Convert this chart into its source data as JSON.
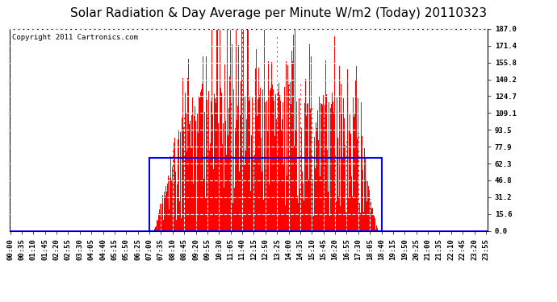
{
  "title": "Solar Radiation & Day Average per Minute W/m2 (Today) 20110323",
  "copyright_text": "Copyright 2011 Cartronics.com",
  "ymax": 187.0,
  "yticks": [
    0.0,
    15.6,
    31.2,
    46.8,
    62.3,
    77.9,
    93.5,
    109.1,
    124.7,
    140.2,
    155.8,
    171.4,
    187.0
  ],
  "bar_color": "#FF0000",
  "blue_rect_color": "#0000FF",
  "background_color": "#FFFFFF",
  "grid_color": "#AAAAAA",
  "title_fontsize": 11,
  "copyright_fontsize": 6.5,
  "tick_fontsize": 6.5,
  "n_minutes": 1440,
  "sunrise_minute": 420,
  "sunset_minute": 1121,
  "day_avg": 68.0,
  "xtick_step": 35
}
